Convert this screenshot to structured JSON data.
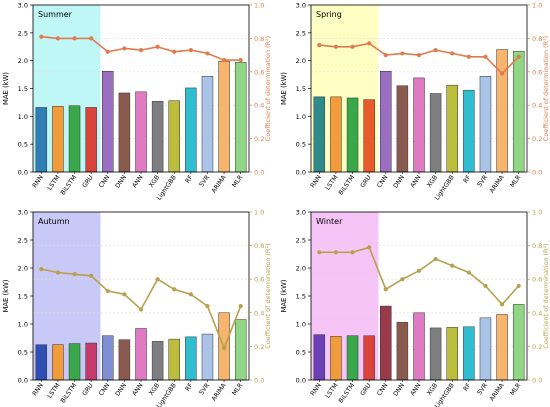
{
  "figure": {
    "left_axis_label": "MAE (kW)",
    "right_axis_label": "Coefficient of determination (R²)"
  },
  "chart_data": [
    {
      "type": "bar",
      "title": "Summer",
      "categories": [
        "RNN",
        "LSTM",
        "BiLSTM",
        "GRU",
        "CNN",
        "DNN",
        "ANN",
        "XGB",
        "LightGBB",
        "RF",
        "SVR",
        "ARIMA",
        "MLR"
      ],
      "ylabel": "MAE (kW)",
      "y2label": "Coefficient of determination (R²)",
      "ylim": [
        0,
        3.0
      ],
      "y2lim": [
        0,
        1.0
      ],
      "yticks": [
        0.0,
        0.5,
        1.0,
        1.5,
        2.0,
        2.5,
        3.0
      ],
      "y2ticks": [
        0.0,
        0.2,
        0.4,
        0.6,
        0.8,
        1.0
      ],
      "grid": true,
      "highlight_span": [
        0,
        3
      ],
      "highlight_color": "#bff7f7",
      "line_color": "#e07b4f",
      "series": [
        {
          "name": "MAE",
          "type": "bar",
          "values": [
            1.16,
            1.18,
            1.19,
            1.16,
            1.81,
            1.42,
            1.44,
            1.27,
            1.28,
            1.51,
            1.72,
            1.99,
            1.97
          ]
        },
        {
          "name": "R²",
          "type": "line",
          "axis": "right",
          "values": [
            0.81,
            0.8,
            0.8,
            0.8,
            0.72,
            0.74,
            0.73,
            0.75,
            0.72,
            0.73,
            0.71,
            0.67,
            0.67
          ]
        }
      ],
      "bar_colors": [
        "#2f7fb5",
        "#f29b3b",
        "#38a84a",
        "#d9443d",
        "#9a6fc2",
        "#8b5a4f",
        "#e07bc3",
        "#7f7f7f",
        "#bcbd3c",
        "#2fbdcf",
        "#a9c4e8",
        "#f7b46d",
        "#90d685"
      ]
    },
    {
      "type": "bar",
      "title": "Spring",
      "categories": [
        "RNN",
        "LSTM",
        "BiLSTM",
        "GRU",
        "CNN",
        "DNN",
        "ANN",
        "XGB",
        "LightGBB",
        "RF",
        "SVR",
        "ARIMA",
        "MLR"
      ],
      "ylabel": "MAE (kW)",
      "y2label": "Coefficient of determination (R²)",
      "ylim": [
        0,
        3.0
      ],
      "y2lim": [
        0,
        1.0
      ],
      "yticks": [
        0.0,
        0.5,
        1.0,
        1.5,
        2.0,
        2.5,
        3.0
      ],
      "y2ticks": [
        0.0,
        0.2,
        0.4,
        0.6,
        0.8,
        1.0
      ],
      "grid": true,
      "highlight_span": [
        0,
        3
      ],
      "highlight_color": "#ffffc4",
      "line_color": "#e07b4f",
      "series": [
        {
          "name": "MAE",
          "type": "bar",
          "values": [
            1.35,
            1.35,
            1.33,
            1.3,
            1.81,
            1.55,
            1.69,
            1.41,
            1.56,
            1.47,
            1.72,
            2.2,
            2.17
          ]
        },
        {
          "name": "R²",
          "type": "line",
          "axis": "right",
          "values": [
            0.76,
            0.75,
            0.75,
            0.77,
            0.7,
            0.71,
            0.7,
            0.73,
            0.71,
            0.69,
            0.69,
            0.59,
            0.69
          ]
        }
      ],
      "bar_colors": [
        "#2f8a8a",
        "#f29b3b",
        "#38a84a",
        "#e85a2a",
        "#9a6fc2",
        "#8b5a4f",
        "#e07bc3",
        "#7f7f7f",
        "#bcbd3c",
        "#2fbdcf",
        "#a9c4e8",
        "#f7b46d",
        "#90d685"
      ]
    },
    {
      "type": "bar",
      "title": "Autumn",
      "categories": [
        "RNN",
        "LSTM",
        "BiLSTM",
        "GRU",
        "CNN",
        "DNN",
        "ANN",
        "XGB",
        "LightGBB",
        "RF",
        "SVR",
        "ARIMA",
        "MLR"
      ],
      "ylabel": "MAE (kW)",
      "y2label": "Coefficient of determination (R²)",
      "ylim": [
        0,
        3.0
      ],
      "y2lim": [
        0,
        1.0
      ],
      "yticks": [
        0.0,
        0.5,
        1.0,
        1.5,
        2.0,
        2.5,
        3.0
      ],
      "y2ticks": [
        0.0,
        0.2,
        0.4,
        0.6,
        0.8,
        1.0
      ],
      "grid": true,
      "highlight_span": [
        0,
        3
      ],
      "highlight_color": "#c9c9f7",
      "line_color": "#b8a04e",
      "series": [
        {
          "name": "MAE",
          "type": "bar",
          "values": [
            0.63,
            0.63,
            0.65,
            0.66,
            0.79,
            0.72,
            0.92,
            0.69,
            0.73,
            0.77,
            0.82,
            1.2,
            1.08
          ]
        },
        {
          "name": "R²",
          "type": "line",
          "axis": "right",
          "values": [
            0.66,
            0.64,
            0.63,
            0.62,
            0.53,
            0.51,
            0.42,
            0.6,
            0.54,
            0.51,
            0.44,
            0.19,
            0.44
          ]
        }
      ],
      "bar_colors": [
        "#2f4fb5",
        "#f29b3b",
        "#38a84a",
        "#c43a6a",
        "#7f8fd4",
        "#8b5a4f",
        "#e07bc3",
        "#7f7f7f",
        "#bcbd3c",
        "#2fbdcf",
        "#a9c4e8",
        "#f7b46d",
        "#90d685"
      ]
    },
    {
      "type": "bar",
      "title": "Winter",
      "categories": [
        "RNN",
        "LSTM",
        "BiLSTM",
        "GRU",
        "CNN",
        "DNN",
        "ANN",
        "XGB",
        "LightGBB",
        "RF",
        "SVR",
        "ARIMA",
        "MLR"
      ],
      "ylabel": "MAE (kW)",
      "y2label": "Coefficient of determination (R²)",
      "ylim": [
        0,
        3.0
      ],
      "y2lim": [
        0,
        1.0
      ],
      "yticks": [
        0.0,
        0.5,
        1.0,
        1.5,
        2.0,
        2.5,
        3.0
      ],
      "y2ticks": [
        0.0,
        0.2,
        0.4,
        0.6,
        0.8,
        1.0
      ],
      "grid": true,
      "highlight_span": [
        0,
        3
      ],
      "highlight_color": "#f7c4f7",
      "line_color": "#b8a04e",
      "series": [
        {
          "name": "MAE",
          "type": "bar",
          "values": [
            0.81,
            0.78,
            0.79,
            0.79,
            1.32,
            1.03,
            1.2,
            0.93,
            0.94,
            0.95,
            1.11,
            1.17,
            1.35
          ]
        },
        {
          "name": "R²",
          "type": "line",
          "axis": "right",
          "values": [
            0.76,
            0.76,
            0.76,
            0.79,
            0.54,
            0.6,
            0.65,
            0.72,
            0.68,
            0.64,
            0.56,
            0.45,
            0.56
          ]
        }
      ],
      "bar_colors": [
        "#6b3fb5",
        "#f29b3b",
        "#38a84a",
        "#d9443d",
        "#9a3a4a",
        "#8b5a4f",
        "#e07bc3",
        "#7f7f7f",
        "#bcbd3c",
        "#2fbdcf",
        "#a9c4e8",
        "#f7b46d",
        "#90d685"
      ]
    }
  ]
}
